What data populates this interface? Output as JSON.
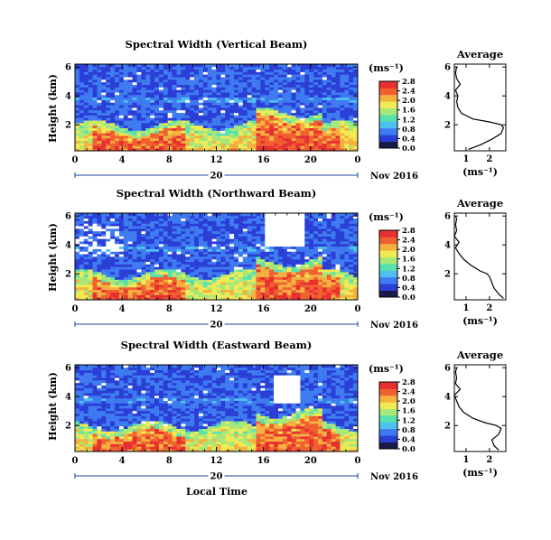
{
  "figure": {
    "xlabel": "Local Time",
    "ylabel": "Height (km)",
    "date_left": "20",
    "date_right": "Nov 2016",
    "colorbar_unit": "(ms⁻¹)",
    "avg_title": "Average",
    "avg_xlabel": "(ms⁻¹)"
  },
  "colormap": [
    "#1a1a4a",
    "#2b3fd6",
    "#3f7bf0",
    "#4fc0f0",
    "#57e0b0",
    "#a6e87a",
    "#f0ea55",
    "#f5b040",
    "#f06030",
    "#e83030"
  ],
  "chart_data": [
    {
      "type": "heatmap",
      "title": "Spectral Width (Vertical Beam)",
      "xlabel": "Local Time",
      "ylabel": "Height (km)",
      "xlim": [
        0,
        24
      ],
      "ylim": [
        0.2,
        6.2
      ],
      "x_ticks": [
        "0",
        "4",
        "8",
        "12",
        "16",
        "20",
        "0"
      ],
      "y_ticks": [
        "2",
        "4",
        "6"
      ],
      "colorbar": {
        "unit": "(ms⁻¹)",
        "ticks": [
          "0.0",
          "0.4",
          "0.8",
          "1.2",
          "1.6",
          "2.0",
          "2.4",
          "2.8"
        ],
        "range": [
          0,
          2.8
        ]
      },
      "average_profile": {
        "title": "Average",
        "xlabel": "(ms⁻¹)",
        "x_ticks": [
          "1",
          "2"
        ],
        "y_ticks": [
          "2",
          "4",
          "6"
        ],
        "height_km": [
          0.3,
          0.6,
          1.0,
          1.4,
          1.8,
          2.0,
          2.2,
          2.4,
          2.8,
          3.2,
          3.6,
          4.0,
          4.4,
          4.8,
          5.2,
          5.6,
          6.0
        ],
        "width_ms": [
          1.1,
          1.6,
          2.1,
          2.5,
          2.6,
          2.5,
          2.0,
          1.3,
          0.8,
          0.65,
          0.6,
          0.65,
          0.55,
          0.75,
          0.6,
          0.55,
          0.6
        ]
      }
    },
    {
      "type": "heatmap",
      "title": "Spectral Width (Northward Beam)",
      "xlabel": "Local Time",
      "ylabel": "Height (km)",
      "xlim": [
        0,
        24
      ],
      "ylim": [
        0.2,
        6.2
      ],
      "x_ticks": [
        "0",
        "4",
        "8",
        "12",
        "16",
        "20",
        "0"
      ],
      "y_ticks": [
        "2",
        "4",
        "6"
      ],
      "colorbar": {
        "unit": "(ms⁻¹)",
        "ticks": [
          "0.0",
          "0.4",
          "0.8",
          "1.2",
          "1.6",
          "2.0",
          "2.4",
          "2.8"
        ],
        "range": [
          0,
          2.8
        ]
      },
      "average_profile": {
        "title": "Average",
        "xlabel": "(ms⁻¹)",
        "x_ticks": [
          "1",
          "2"
        ],
        "y_ticks": [
          "2",
          "4",
          "6"
        ],
        "height_km": [
          0.3,
          0.6,
          1.0,
          1.4,
          1.8,
          2.0,
          2.2,
          2.6,
          3.0,
          3.4,
          3.8,
          4.2,
          4.6,
          5.0,
          5.4,
          5.8,
          6.0
        ],
        "width_ms": [
          2.6,
          2.4,
          2.2,
          2.1,
          2.0,
          1.9,
          1.6,
          1.2,
          0.9,
          0.7,
          0.55,
          0.7,
          0.5,
          0.6,
          0.55,
          0.6,
          0.55
        ]
      }
    },
    {
      "type": "heatmap",
      "title": "Spectral Width (Eastward Beam)",
      "xlabel": "Local Time",
      "ylabel": "Height (km)",
      "xlim": [
        0,
        24
      ],
      "ylim": [
        0.2,
        6.2
      ],
      "x_ticks": [
        "0",
        "4",
        "8",
        "12",
        "16",
        "20",
        "0"
      ],
      "y_ticks": [
        "2",
        "4",
        "6"
      ],
      "colorbar": {
        "unit": "(ms⁻¹)",
        "ticks": [
          "0.0",
          "0.4",
          "0.8",
          "1.2",
          "1.6",
          "2.0",
          "2.4",
          "2.8"
        ],
        "range": [
          0,
          2.8
        ]
      },
      "average_profile": {
        "title": "Average",
        "xlabel": "(ms⁻¹)",
        "x_ticks": [
          "1",
          "2"
        ],
        "y_ticks": [
          "2",
          "4",
          "6"
        ],
        "height_km": [
          0.3,
          0.6,
          1.0,
          1.4,
          1.8,
          2.0,
          2.2,
          2.5,
          2.9,
          3.3,
          3.7,
          4.1,
          4.5,
          4.9,
          5.3,
          5.7,
          6.0
        ],
        "width_ms": [
          2.4,
          2.2,
          2.1,
          2.4,
          2.5,
          2.3,
          1.8,
          1.3,
          0.9,
          0.7,
          0.6,
          0.5,
          0.75,
          0.55,
          0.6,
          0.55,
          0.6
        ]
      }
    }
  ]
}
